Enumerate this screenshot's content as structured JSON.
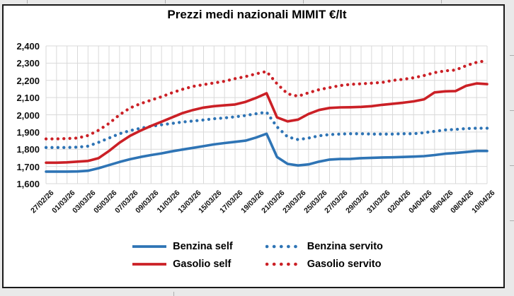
{
  "chart_data": {
    "type": "line",
    "title": "Prezzi medi nazionali MIMIT €/lt",
    "xlabel": "",
    "ylabel": "",
    "ylim": [
      1600,
      2400
    ],
    "ytick_step": 100,
    "ytick_labels": [
      "1,600",
      "1,700",
      "1,800",
      "1,900",
      "2,000",
      "2,100",
      "2,200",
      "2,300",
      "2,400"
    ],
    "x_label_every": 2,
    "grid": true,
    "legend_position": "bottom",
    "colors": {
      "blue": "#2e74b5",
      "red": "#cb2026",
      "gridline": "#d9d9d9"
    },
    "categories": [
      "27/02/26",
      "28/02/26",
      "01/03/26",
      "02/03/26",
      "03/03/26",
      "04/03/26",
      "05/03/26",
      "06/03/26",
      "07/03/26",
      "08/03/26",
      "09/03/26",
      "10/03/26",
      "11/03/26",
      "12/03/26",
      "13/03/26",
      "14/03/26",
      "15/03/26",
      "16/03/26",
      "17/03/26",
      "18/03/26",
      "19/03/26",
      "20/03/26",
      "21/03/26",
      "22/03/26",
      "23/03/26",
      "24/03/26",
      "25/03/26",
      "26/03/26",
      "27/03/26",
      "28/03/26",
      "29/03/26",
      "30/03/26",
      "31/03/26",
      "01/04/26",
      "02/04/26",
      "03/04/26",
      "04/04/26",
      "05/04/26",
      "06/04/26",
      "07/04/26",
      "08/04/26",
      "09/04/26",
      "10/04/26"
    ],
    "series": [
      {
        "name": "Benzina self",
        "color": "#2e74b5",
        "style": "solid",
        "values": [
          1670,
          1670,
          1670,
          1671,
          1675,
          1690,
          1708,
          1726,
          1742,
          1755,
          1766,
          1776,
          1788,
          1798,
          1808,
          1818,
          1828,
          1836,
          1843,
          1850,
          1868,
          1890,
          1755,
          1715,
          1706,
          1712,
          1728,
          1740,
          1743,
          1744,
          1748,
          1750,
          1752,
          1753,
          1755,
          1757,
          1760,
          1766,
          1774,
          1778,
          1784,
          1790,
          1790
        ]
      },
      {
        "name": "Benzina servito",
        "color": "#2e74b5",
        "style": "dotted",
        "values": [
          1810,
          1810,
          1810,
          1812,
          1818,
          1840,
          1865,
          1890,
          1908,
          1922,
          1933,
          1942,
          1950,
          1958,
          1964,
          1970,
          1977,
          1982,
          1988,
          1996,
          2006,
          2015,
          1930,
          1872,
          1856,
          1865,
          1878,
          1885,
          1888,
          1890,
          1890,
          1888,
          1888,
          1888,
          1890,
          1890,
          1896,
          1904,
          1912,
          1915,
          1920,
          1922,
          1922
        ]
      },
      {
        "name": "Gasolio self",
        "color": "#cb2026",
        "style": "solid",
        "values": [
          1722,
          1722,
          1724,
          1728,
          1732,
          1748,
          1790,
          1838,
          1878,
          1908,
          1935,
          1960,
          1985,
          2010,
          2028,
          2042,
          2050,
          2055,
          2060,
          2075,
          2098,
          2125,
          1985,
          1962,
          1972,
          2005,
          2028,
          2040,
          2043,
          2044,
          2046,
          2050,
          2058,
          2064,
          2070,
          2078,
          2090,
          2130,
          2136,
          2138,
          2168,
          2182,
          2178
        ]
      },
      {
        "name": "Gasolio servito",
        "color": "#cb2026",
        "style": "dotted",
        "values": [
          1860,
          1860,
          1862,
          1865,
          1880,
          1910,
          1950,
          2000,
          2040,
          2065,
          2085,
          2105,
          2128,
          2148,
          2165,
          2175,
          2185,
          2195,
          2210,
          2222,
          2238,
          2252,
          2180,
          2122,
          2108,
          2128,
          2146,
          2158,
          2170,
          2177,
          2180,
          2184,
          2188,
          2200,
          2206,
          2215,
          2228,
          2245,
          2255,
          2260,
          2285,
          2305,
          2315
        ]
      }
    ]
  }
}
